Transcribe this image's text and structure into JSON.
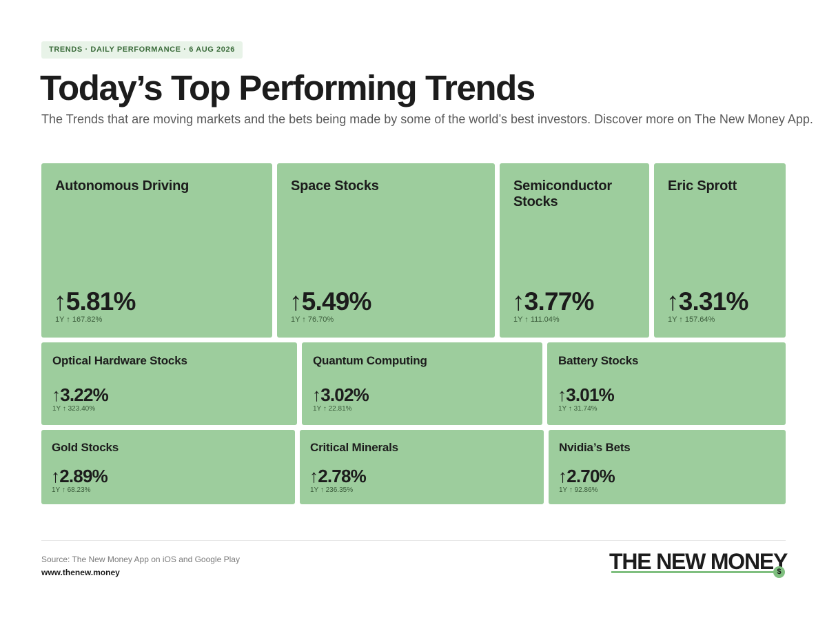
{
  "header": {
    "tag": "TRENDS · DAILY PERFORMANCE · 6 AUG 2026",
    "title": "Today’s Top Performing Trends",
    "subtitle": "The Trends that are moving markets and the bets being made by some of the world’s best investors. Discover more on The New Money App."
  },
  "colors": {
    "tile": "#9dcd9d",
    "tag_bg": "#e8f3e8",
    "accent": "#7fbf7f"
  },
  "chart_data": {
    "type": "treemap",
    "arrow_icon": "arrow-up-icon",
    "items": [
      {
        "name": "Autonomous Driving",
        "change": "5.81%",
        "value": 5.81,
        "one_year": "1Y ↑ 167.82%",
        "one_year_value": 167.82
      },
      {
        "name": "Space Stocks",
        "change": "5.49%",
        "value": 5.49,
        "one_year": "1Y ↑ 76.70%",
        "one_year_value": 76.7
      },
      {
        "name": "Semiconductor Stocks",
        "change": "3.77%",
        "value": 3.77,
        "one_year": "1Y ↑ 111.04%",
        "one_year_value": 111.04
      },
      {
        "name": "Eric Sprott",
        "change": "3.31%",
        "value": 3.31,
        "one_year": "1Y ↑ 157.64%",
        "one_year_value": 157.64
      },
      {
        "name": "Optical Hardware Stocks",
        "change": "3.22%",
        "value": 3.22,
        "one_year": "1Y ↑ 323.40%",
        "one_year_value": 323.4
      },
      {
        "name": "Quantum Computing",
        "change": "3.02%",
        "value": 3.02,
        "one_year": "1Y ↑ 22.81%",
        "one_year_value": 22.81
      },
      {
        "name": "Battery Stocks",
        "change": "3.01%",
        "value": 3.01,
        "one_year": "1Y ↑ 31.74%",
        "one_year_value": 31.74
      },
      {
        "name": "Gold Stocks",
        "change": "2.89%",
        "value": 2.89,
        "one_year": "1Y ↑ 68.23%",
        "one_year_value": 68.23
      },
      {
        "name": "Critical Minerals",
        "change": "2.78%",
        "value": 2.78,
        "one_year": "1Y ↑ 236.35%",
        "one_year_value": 236.35
      },
      {
        "name": "Nvidia’s Bets",
        "change": "2.70%",
        "value": 2.7,
        "one_year": "1Y ↑ 92.86%",
        "one_year_value": 92.86
      }
    ]
  },
  "footer": {
    "source": "Source: The New Money App on iOS and Google Play",
    "url": "www.thenew.money",
    "logo_text": "THE NEW MONEY",
    "logo_coin": "$"
  }
}
